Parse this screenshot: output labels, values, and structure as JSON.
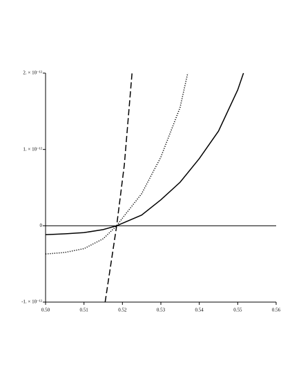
{
  "chart_data": {
    "type": "line",
    "xlim": [
      0.5,
      0.56
    ],
    "xticks": [
      {
        "value": 0.5,
        "label": "0.50"
      },
      0.51,
      0.52,
      0.53,
      0.54,
      0.55,
      0.56
    ],
    "ylim": [
      -1e-12,
      2e-12
    ],
    "yticks": [
      {
        "value": -1e-12,
        "label": "-1. × 10⁻¹²"
      },
      0,
      {
        "value": 1e-12,
        "label": "1. × 10⁻¹²"
      },
      {
        "value": 2e-12,
        "label": "2. × 10⁻¹²"
      }
    ],
    "grid": false,
    "series": [
      {
        "color": "#000000",
        "style": "solid",
        "x": [
          0.5,
          0.505,
          0.51,
          0.515,
          0.5185,
          0.525,
          0.53,
          0.535,
          0.54,
          0.545,
          0.55,
          0.5515
        ],
        "values": [
          -1.17e-13,
          -1.05e-13,
          -9e-14,
          -5e-14,
          0,
          1.4e-13,
          3.4e-13,
          5.7e-13,
          8.8e-13,
          1.24e-12,
          1.78e-12,
          2e-12
        ]
      },
      {
        "color": "#000000",
        "style": "dotted",
        "x": [
          0.5,
          0.505,
          0.51,
          0.515,
          0.5185,
          0.52,
          0.525,
          0.53,
          0.535,
          0.537
        ],
        "values": [
          -3.7e-13,
          -3.5e-13,
          -3e-13,
          -1.7e-13,
          0,
          1e-13,
          4.2e-13,
          9e-13,
          1.55e-12,
          2e-12
        ]
      },
      {
        "color": "#000000",
        "style": "dashed",
        "x": [
          0.5155,
          0.5185,
          0.5205,
          0.5225
        ],
        "values": [
          -1e-12,
          0,
          8e-13,
          2e-12
        ]
      }
    ]
  }
}
